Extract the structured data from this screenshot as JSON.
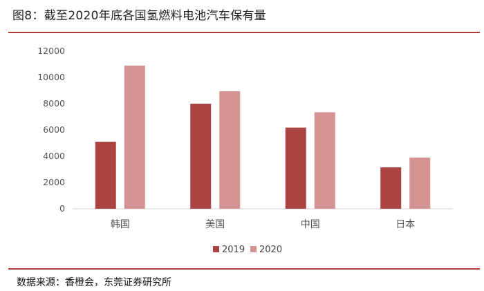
{
  "title": "图8：截至2020年底各国氢燃料电池汽车保有量",
  "source": "数据来源：香橙会，东莞证券研究所",
  "chart_data": {
    "type": "bar",
    "title": "图8：截至2020年底各国氢燃料电池汽车保有量",
    "xlabel": "",
    "ylabel": "",
    "categories": [
      "韩国",
      "美国",
      "中国",
      "日本"
    ],
    "series": [
      {
        "name": "2019",
        "values": [
          5100,
          8000,
          6180,
          3150
        ],
        "color": "#a94442"
      },
      {
        "name": "2020",
        "values": [
          10900,
          8950,
          7350,
          3900
        ],
        "color": "#d49393"
      }
    ],
    "ylim": [
      0,
      12000
    ],
    "yticks": [
      0,
      2000,
      4000,
      6000,
      8000,
      10000,
      12000
    ],
    "grid": false,
    "legend": "bottom-center"
  }
}
